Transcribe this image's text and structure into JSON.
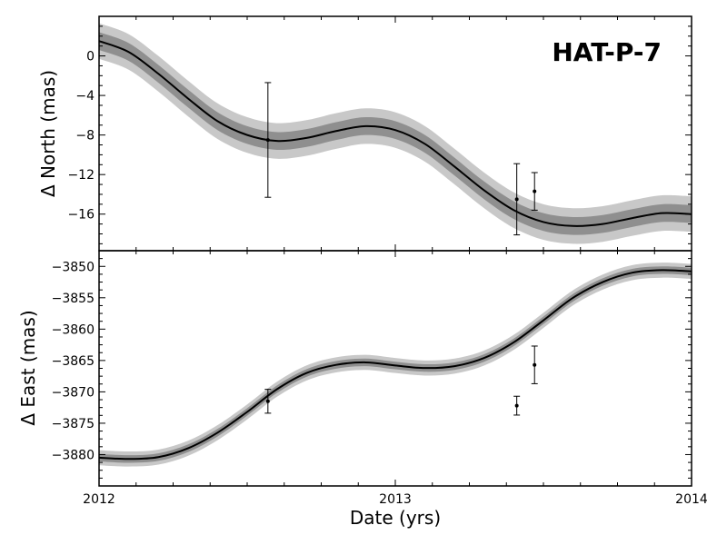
{
  "chart_data": {
    "type": "line",
    "title": "HAT-P-7",
    "xlabel": "Date (yrs)",
    "xlim": [
      2012,
      2014
    ],
    "xticks": [
      "2012",
      "2013",
      "2014"
    ],
    "panels": [
      {
        "id": "north",
        "ylabel": "Δ North (mas)",
        "ylim": [
          -19.7,
          4.0
        ],
        "yticks": [
          "0",
          "−4",
          "−8",
          "−12",
          "−16"
        ],
        "model": {
          "x": [
            2012.0,
            2012.1,
            2012.2,
            2012.3,
            2012.4,
            2012.5,
            2012.6,
            2012.7,
            2012.8,
            2012.9,
            2013.0,
            2013.1,
            2013.2,
            2013.3,
            2013.4,
            2013.5,
            2013.6,
            2013.7,
            2013.8,
            2013.9,
            2014.0
          ],
          "y": [
            1.5,
            0.4,
            -1.8,
            -4.3,
            -6.6,
            -8.0,
            -8.6,
            -8.3,
            -7.6,
            -7.1,
            -7.5,
            -8.9,
            -11.2,
            -13.6,
            -15.6,
            -16.8,
            -17.2,
            -17.0,
            -16.4,
            -15.9,
            -16.0
          ],
          "band_1sigma": 0.9,
          "band_2sigma": 1.8
        },
        "points": [
          {
            "x": 2012.57,
            "y": -8.5,
            "err": 5.8
          },
          {
            "x": 2013.41,
            "y": -14.5,
            "err": 3.6
          },
          {
            "x": 2013.47,
            "y": -13.7,
            "err": 1.9
          }
        ]
      },
      {
        "id": "east",
        "ylabel": "Δ East (mas)",
        "ylim": [
          -3885,
          -3847.5
        ],
        "yticks": [
          "−3850",
          "−3855",
          "−3860",
          "−3865",
          "−3870",
          "−3875",
          "−3880"
        ],
        "model": {
          "x": [
            2012.0,
            2012.1,
            2012.2,
            2012.3,
            2012.4,
            2012.5,
            2012.6,
            2012.7,
            2012.8,
            2012.9,
            2013.0,
            2013.1,
            2013.2,
            2013.3,
            2013.4,
            2013.5,
            2013.6,
            2013.7,
            2013.8,
            2013.9,
            2014.0
          ],
          "y": [
            -3880.5,
            -3880.7,
            -3880.4,
            -3879.0,
            -3876.5,
            -3873.2,
            -3869.6,
            -3867.0,
            -3865.7,
            -3865.3,
            -3865.8,
            -3866.2,
            -3865.9,
            -3864.6,
            -3862.1,
            -3858.6,
            -3855.0,
            -3852.5,
            -3851.0,
            -3850.6,
            -3850.8
          ],
          "band_1sigma": 0.6,
          "band_2sigma": 1.2
        },
        "points": [
          {
            "x": 2012.57,
            "y": -3871.5,
            "err": 1.9
          },
          {
            "x": 2013.41,
            "y": -3872.2,
            "err": 1.5
          },
          {
            "x": 2013.47,
            "y": -3865.7,
            "err": 3.0
          }
        ]
      }
    ],
    "colors": {
      "band_outer": "#c8c8c8",
      "band_inner": "#8f8f8f",
      "model_line": "#000000",
      "points": "#000000"
    }
  }
}
